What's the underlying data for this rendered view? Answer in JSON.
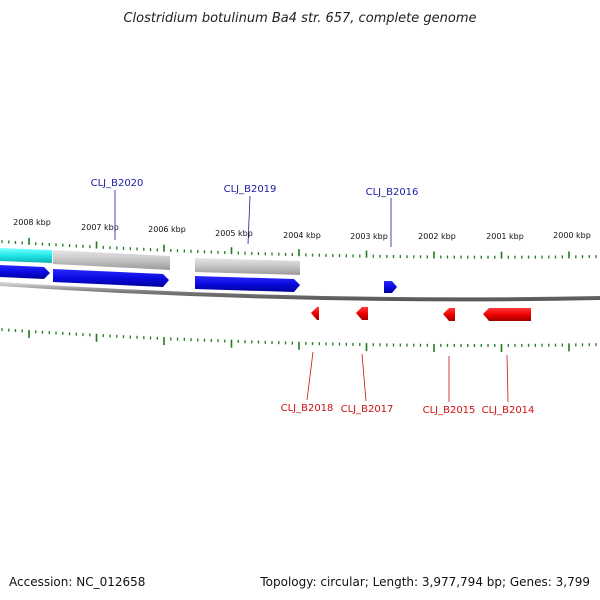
{
  "title": "Clostridium botulinum Ba4 str. 657, complete genome",
  "footer": {
    "accession": "Accession: NC_012658",
    "summary": "Topology: circular; Length: 3,977,794 bp; Genes: 3,799"
  },
  "colors": {
    "forward_gene": "#1010ee",
    "reverse_gene": "#ee1010",
    "forward_label": "#1a1aa0",
    "reverse_label": "#cc1111",
    "tick": "#1e7a1e",
    "backbone": "#888888",
    "highlight": "#20e0e0",
    "gray_feature": "#b8b8b8"
  },
  "position_labels": [
    "2008 kbp",
    "2007 kbp",
    "2006 kbp",
    "2005 kbp",
    "2004 kbp",
    "2003 kbp",
    "2002 kbp",
    "2001 kbp",
    "2000 kbp"
  ],
  "forward_genes": [
    "CLJ_B2020",
    "CLJ_B2019",
    "CLJ_B2016"
  ],
  "reverse_genes": [
    "CLJ_B2018",
    "CLJ_B2017",
    "CLJ_B2015",
    "CLJ_B2014"
  ]
}
